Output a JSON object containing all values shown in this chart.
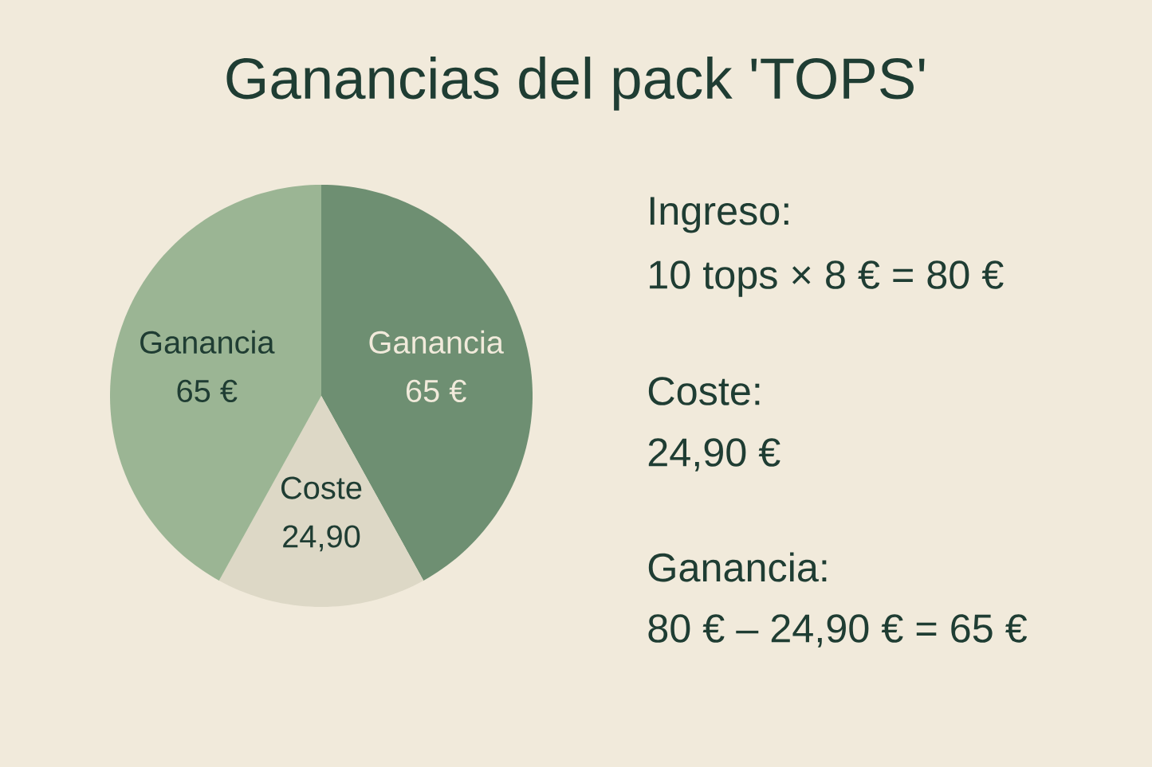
{
  "chart_data": {
    "type": "pie",
    "title": "Ganancias del pack 'TOPS'",
    "categories": [
      "Ganancia",
      "Coste",
      "Ganancia"
    ],
    "values": [
      65,
      24.9,
      65
    ],
    "value_labels": [
      "65 €",
      "24,90",
      "65 €"
    ],
    "colors": [
      "#6e8f72",
      "#ddd8c6",
      "#9bb594"
    ],
    "annotations": [
      "Ingreso:",
      "10 tops × 8 € = 80 €",
      "Coste:",
      "24,90 €",
      "Ganancia:",
      "80 € – 24,90 € = 65 €"
    ]
  }
}
